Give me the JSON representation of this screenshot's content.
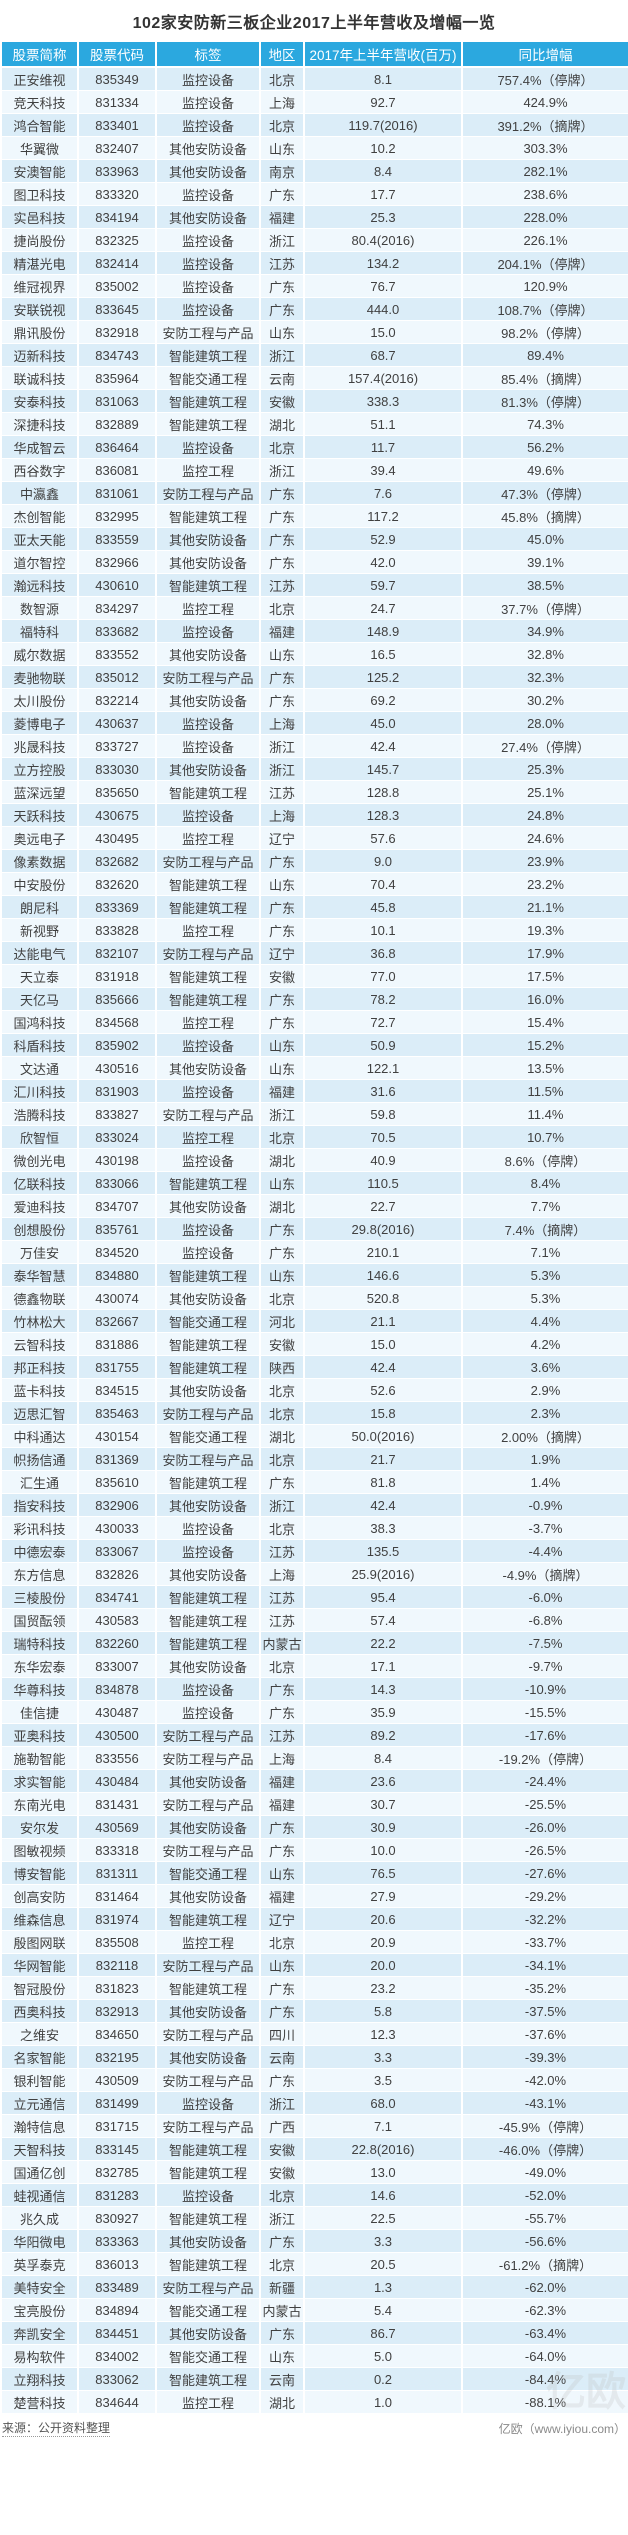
{
  "title": "102家安防新三板企业2017上半年营收及增幅一览",
  "footer": {
    "source": "来源：公开资料整理",
    "credit": "亿欧（www.iyiou.com）"
  },
  "watermark": "亿欧",
  "colors": {
    "header_bg": "#2BA8DF",
    "row_odd": "#DBEDF8",
    "row_even": "#F0F8FD",
    "header_text": "#FFFFFF",
    "body_text": "#404040"
  },
  "chart_data": {
    "type": "table",
    "title": "102家安防新三板企业2017上半年营收及增幅一览",
    "columns": [
      "股票简称",
      "股票代码",
      "标签",
      "地区",
      "2017年上半年营收(百万)",
      "同比增幅"
    ],
    "rows": [
      [
        "正安维视",
        "835349",
        "监控设备",
        "北京",
        "8.1",
        "757.4%（停牌）"
      ],
      [
        "竞天科技",
        "831334",
        "监控设备",
        "上海",
        "92.7",
        "424.9%"
      ],
      [
        "鸿合智能",
        "833401",
        "监控设备",
        "北京",
        "119.7(2016)",
        "391.2%（摘牌）"
      ],
      [
        "华翼微",
        "832407",
        "其他安防设备",
        "山东",
        "10.2",
        "303.3%"
      ],
      [
        "安澳智能",
        "833963",
        "其他安防设备",
        "南京",
        "8.4",
        "282.1%"
      ],
      [
        "图卫科技",
        "833320",
        "监控设备",
        "广东",
        "17.7",
        "238.6%"
      ],
      [
        "实邑科技",
        "834194",
        "其他安防设备",
        "福建",
        "25.3",
        "228.0%"
      ],
      [
        "捷尚股份",
        "832325",
        "监控设备",
        "浙江",
        "80.4(2016)",
        "226.1%"
      ],
      [
        "精湛光电",
        "832414",
        "监控设备",
        "江苏",
        "134.2",
        "204.1%（停牌）"
      ],
      [
        "维冠视界",
        "835002",
        "监控设备",
        "广东",
        "76.7",
        "120.9%"
      ],
      [
        "安联锐视",
        "833645",
        "监控设备",
        "广东",
        "444.0",
        "108.7%（停牌）"
      ],
      [
        "鼎讯股份",
        "832918",
        "安防工程与产品",
        "山东",
        "15.0",
        "98.2%（停牌）"
      ],
      [
        "迈新科技",
        "834743",
        "智能建筑工程",
        "浙江",
        "68.7",
        "89.4%"
      ],
      [
        "联诚科技",
        "835964",
        "智能交通工程",
        "云南",
        "157.4(2016)",
        "85.4%（摘牌）"
      ],
      [
        "安泰科技",
        "831063",
        "智能建筑工程",
        "安徽",
        "338.3",
        "81.3%（停牌）"
      ],
      [
        "深捷科技",
        "832889",
        "智能建筑工程",
        "湖北",
        "51.1",
        "74.3%"
      ],
      [
        "华成智云",
        "836464",
        "监控设备",
        "北京",
        "11.7",
        "56.2%"
      ],
      [
        "西谷数字",
        "836081",
        "监控工程",
        "浙江",
        "39.4",
        "49.6%"
      ],
      [
        "中瀛鑫",
        "831061",
        "安防工程与产品",
        "广东",
        "7.6",
        "47.3%（停牌）"
      ],
      [
        "杰创智能",
        "832995",
        "智能建筑工程",
        "广东",
        "117.2",
        "45.8%（摘牌）"
      ],
      [
        "亚太天能",
        "833559",
        "其他安防设备",
        "广东",
        "52.9",
        "45.0%"
      ],
      [
        "道尔智控",
        "832966",
        "其他安防设备",
        "广东",
        "42.0",
        "39.1%"
      ],
      [
        "瀚远科技",
        "430610",
        "智能建筑工程",
        "江苏",
        "59.7",
        "38.5%"
      ],
      [
        "数智源",
        "834297",
        "监控工程",
        "北京",
        "24.7",
        "37.7%（停牌）"
      ],
      [
        "福特科",
        "833682",
        "监控设备",
        "福建",
        "148.9",
        "34.9%"
      ],
      [
        "威尔数据",
        "833552",
        "其他安防设备",
        "山东",
        "16.5",
        "32.8%"
      ],
      [
        "麦驰物联",
        "835012",
        "安防工程与产品",
        "广东",
        "125.2",
        "32.3%"
      ],
      [
        "太川股份",
        "832214",
        "其他安防设备",
        "广东",
        "69.2",
        "30.2%"
      ],
      [
        "菱博电子",
        "430637",
        "监控设备",
        "上海",
        "45.0",
        "28.0%"
      ],
      [
        "兆晟科技",
        "833727",
        "监控设备",
        "浙江",
        "42.4",
        "27.4%（停牌）"
      ],
      [
        "立方控股",
        "833030",
        "其他安防设备",
        "浙江",
        "145.7",
        "25.3%"
      ],
      [
        "蓝深远望",
        "835650",
        "智能建筑工程",
        "江苏",
        "128.8",
        "25.1%"
      ],
      [
        "天跃科技",
        "430675",
        "监控设备",
        "上海",
        "128.3",
        "24.8%"
      ],
      [
        "奥远电子",
        "430495",
        "监控工程",
        "辽宁",
        "57.6",
        "24.6%"
      ],
      [
        "像素数据",
        "832682",
        "安防工程与产品",
        "广东",
        "9.0",
        "23.9%"
      ],
      [
        "中安股份",
        "832620",
        "智能建筑工程",
        "山东",
        "70.4",
        "23.2%"
      ],
      [
        "朗尼科",
        "833369",
        "智能建筑工程",
        "广东",
        "45.8",
        "21.1%"
      ],
      [
        "新视野",
        "833828",
        "监控工程",
        "广东",
        "10.1",
        "19.3%"
      ],
      [
        "达能电气",
        "832107",
        "安防工程与产品",
        "辽宁",
        "36.8",
        "17.9%"
      ],
      [
        "天立泰",
        "831918",
        "智能建筑工程",
        "安徽",
        "77.0",
        "17.5%"
      ],
      [
        "天亿马",
        "835666",
        "智能建筑工程",
        "广东",
        "78.2",
        "16.0%"
      ],
      [
        "国鸿科技",
        "834568",
        "监控工程",
        "广东",
        "72.7",
        "15.4%"
      ],
      [
        "科盾科技",
        "835902",
        "监控设备",
        "山东",
        "50.9",
        "15.2%"
      ],
      [
        "文达通",
        "430516",
        "其他安防设备",
        "山东",
        "122.1",
        "13.5%"
      ],
      [
        "汇川科技",
        "831903",
        "监控设备",
        "福建",
        "31.6",
        "11.5%"
      ],
      [
        "浩腾科技",
        "833827",
        "安防工程与产品",
        "浙江",
        "59.8",
        "11.4%"
      ],
      [
        "欣智恒",
        "833024",
        "监控工程",
        "北京",
        "70.5",
        "10.7%"
      ],
      [
        "微创光电",
        "430198",
        "监控设备",
        "湖北",
        "40.9",
        "8.6%（停牌）"
      ],
      [
        "亿联科技",
        "833066",
        "智能建筑工程",
        "山东",
        "110.5",
        "8.4%"
      ],
      [
        "爱迪科技",
        "834707",
        "其他安防设备",
        "湖北",
        "22.7",
        "7.7%"
      ],
      [
        "创想股份",
        "835761",
        "监控设备",
        "广东",
        "29.8(2016)",
        "7.4%（摘牌）"
      ],
      [
        "万佳安",
        "834520",
        "监控设备",
        "广东",
        "210.1",
        "7.1%"
      ],
      [
        "泰华智慧",
        "834880",
        "智能建筑工程",
        "山东",
        "146.6",
        "5.3%"
      ],
      [
        "德鑫物联",
        "430074",
        "其他安防设备",
        "北京",
        "520.8",
        "5.3%"
      ],
      [
        "竹林松大",
        "832667",
        "智能交通工程",
        "河北",
        "21.1",
        "4.4%"
      ],
      [
        "云智科技",
        "831886",
        "智能建筑工程",
        "安徽",
        "15.0",
        "4.2%"
      ],
      [
        "邦正科技",
        "831755",
        "智能建筑工程",
        "陕西",
        "42.4",
        "3.6%"
      ],
      [
        "蓝卡科技",
        "834515",
        "其他安防设备",
        "北京",
        "52.6",
        "2.9%"
      ],
      [
        "迈思汇智",
        "835463",
        "安防工程与产品",
        "北京",
        "15.8",
        "2.3%"
      ],
      [
        "中科通达",
        "430154",
        "智能交通工程",
        "湖北",
        "50.0(2016)",
        "2.00%（摘牌）"
      ],
      [
        "帜扬信通",
        "831369",
        "安防工程与产品",
        "北京",
        "21.7",
        "1.9%"
      ],
      [
        "汇生通",
        "835610",
        "智能建筑工程",
        "广东",
        "81.8",
        "1.4%"
      ],
      [
        "指安科技",
        "832906",
        "其他安防设备",
        "浙江",
        "42.4",
        "-0.9%"
      ],
      [
        "彩讯科技",
        "430033",
        "监控设备",
        "北京",
        "38.3",
        "-3.7%"
      ],
      [
        "中德宏泰",
        "833067",
        "监控设备",
        "江苏",
        "135.5",
        "-4.4%"
      ],
      [
        "东方信息",
        "832826",
        "其他安防设备",
        "上海",
        "25.9(2016)",
        "-4.9%（摘牌）"
      ],
      [
        "三棱股份",
        "834741",
        "智能建筑工程",
        "江苏",
        "95.4",
        "-6.0%"
      ],
      [
        "国贸酝领",
        "430583",
        "智能建筑工程",
        "江苏",
        "57.4",
        "-6.8%"
      ],
      [
        "瑞特科技",
        "832260",
        "智能建筑工程",
        "内蒙古",
        "22.2",
        "-7.5%"
      ],
      [
        "东华宏泰",
        "833007",
        "其他安防设备",
        "北京",
        "17.1",
        "-9.7%"
      ],
      [
        "华尊科技",
        "834878",
        "监控设备",
        "广东",
        "14.3",
        "-10.9%"
      ],
      [
        "佳信捷",
        "430487",
        "监控设备",
        "广东",
        "35.9",
        "-15.5%"
      ],
      [
        "亚奥科技",
        "430500",
        "安防工程与产品",
        "江苏",
        "89.2",
        "-17.6%"
      ],
      [
        "施勒智能",
        "833556",
        "安防工程与产品",
        "上海",
        "8.4",
        "-19.2%（停牌）"
      ],
      [
        "求实智能",
        "430484",
        "其他安防设备",
        "福建",
        "23.6",
        "-24.4%"
      ],
      [
        "东南光电",
        "831431",
        "安防工程与产品",
        "福建",
        "30.7",
        "-25.5%"
      ],
      [
        "安尔发",
        "430569",
        "其他安防设备",
        "广东",
        "30.9",
        "-26.0%"
      ],
      [
        "图敏视频",
        "833318",
        "安防工程与产品",
        "广东",
        "10.0",
        "-26.5%"
      ],
      [
        "博安智能",
        "831311",
        "智能交通工程",
        "山东",
        "76.5",
        "-27.6%"
      ],
      [
        "创高安防",
        "831464",
        "其他安防设备",
        "福建",
        "27.9",
        "-29.2%"
      ],
      [
        "维森信息",
        "831974",
        "智能建筑工程",
        "辽宁",
        "20.6",
        "-32.2%"
      ],
      [
        "殷图网联",
        "835508",
        "监控工程",
        "北京",
        "20.9",
        "-33.7%"
      ],
      [
        "华网智能",
        "832118",
        "安防工程与产品",
        "山东",
        "20.0",
        "-34.1%"
      ],
      [
        "智冠股份",
        "831823",
        "智能建筑工程",
        "广东",
        "23.2",
        "-35.2%"
      ],
      [
        "西奥科技",
        "832913",
        "其他安防设备",
        "广东",
        "5.8",
        "-37.5%"
      ],
      [
        "之维安",
        "834650",
        "安防工程与产品",
        "四川",
        "12.3",
        "-37.6%"
      ],
      [
        "名家智能",
        "832195",
        "其他安防设备",
        "云南",
        "3.3",
        "-39.3%"
      ],
      [
        "银利智能",
        "430509",
        "安防工程与产品",
        "广东",
        "3.5",
        "-42.0%"
      ],
      [
        "立元通信",
        "831499",
        "监控设备",
        "浙江",
        "68.0",
        "-43.1%"
      ],
      [
        "瀚特信息",
        "831715",
        "安防工程与产品",
        "广西",
        "7.1",
        "-45.9%（停牌）"
      ],
      [
        "天智科技",
        "833145",
        "智能建筑工程",
        "安徽",
        "22.8(2016)",
        "-46.0%（停牌）"
      ],
      [
        "国通亿创",
        "832785",
        "智能建筑工程",
        "安徽",
        "13.0",
        "-49.0%"
      ],
      [
        "蛙视通信",
        "831283",
        "监控设备",
        "北京",
        "14.6",
        "-52.0%"
      ],
      [
        "兆久成",
        "830927",
        "智能建筑工程",
        "浙江",
        "22.5",
        "-55.7%"
      ],
      [
        "华阳微电",
        "833363",
        "其他安防设备",
        "广东",
        "3.3",
        "-56.6%"
      ],
      [
        "英孚泰克",
        "836013",
        "智能建筑工程",
        "北京",
        "20.5",
        "-61.2%（摘牌）"
      ],
      [
        "美特安全",
        "833489",
        "安防工程与产品",
        "新疆",
        "1.3",
        "-62.0%"
      ],
      [
        "宝亮股份",
        "834894",
        "智能交通工程",
        "内蒙古",
        "5.4",
        "-62.3%"
      ],
      [
        "奔凯安全",
        "834451",
        "其他安防设备",
        "广东",
        "86.7",
        "-63.4%"
      ],
      [
        "易构软件",
        "834002",
        "智能交通工程",
        "山东",
        "5.0",
        "-64.0%"
      ],
      [
        "立翔科技",
        "833062",
        "智能建筑工程",
        "云南",
        "0.2",
        "-84.4%"
      ],
      [
        "楚营科技",
        "834644",
        "监控工程",
        "湖北",
        "1.0",
        "-88.1%"
      ]
    ]
  }
}
